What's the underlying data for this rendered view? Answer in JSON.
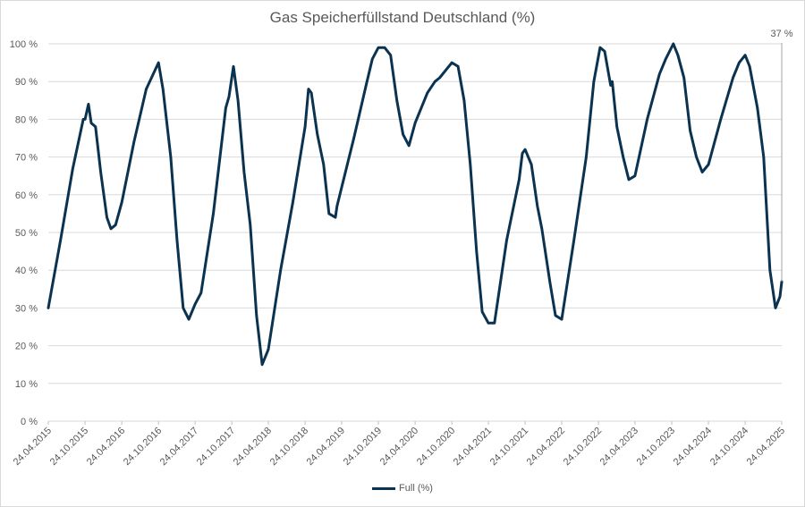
{
  "chart_data": {
    "type": "line",
    "title": "Gas Speicherfüllstand Deutschland (%)",
    "xlabel": "",
    "ylabel": "",
    "ylim": [
      0,
      100
    ],
    "y_ticks": [
      "0 %",
      "10 %",
      "20 %",
      "30 %",
      "40 %",
      "50 %",
      "60 %",
      "70 %",
      "80 %",
      "90 %",
      "100 %"
    ],
    "x_ticks": [
      "24.04.2015",
      "24.10.2015",
      "24.04.2016",
      "24.10.2016",
      "24.04.2017",
      "24.10.2017",
      "24.04.2018",
      "24.10.2018",
      "24.04.2019",
      "24.10.2019",
      "24.04.2020",
      "24.10.2020",
      "24.04.2021",
      "24.10.2021",
      "24.04.2022",
      "24.10.2022",
      "24.04.2023",
      "24.10.2023",
      "24.04.2024",
      "24.10.2024",
      "24.04.2025"
    ],
    "series": [
      {
        "name": "Full (%)",
        "color": "#0b3350",
        "points": [
          [
            "24.04.2015",
            30
          ],
          [
            "24.06.2015",
            48
          ],
          [
            "24.08.2015",
            67
          ],
          [
            "15.10.2015",
            80
          ],
          [
            "24.10.2015",
            80
          ],
          [
            "10.11.2015",
            84
          ],
          [
            "24.11.2015",
            79
          ],
          [
            "15.12.2015",
            78
          ],
          [
            "10.01.2016",
            66
          ],
          [
            "10.02.2016",
            54
          ],
          [
            "01.03.2016",
            51
          ],
          [
            "24.03.2016",
            52
          ],
          [
            "24.04.2016",
            58
          ],
          [
            "24.06.2016",
            74
          ],
          [
            "24.08.2016",
            88
          ],
          [
            "24.10.2016",
            95
          ],
          [
            "15.11.2016",
            88
          ],
          [
            "24.12.2016",
            70
          ],
          [
            "24.01.2017",
            48
          ],
          [
            "24.02.2017",
            30
          ],
          [
            "24.03.2017",
            27
          ],
          [
            "24.04.2017",
            31
          ],
          [
            "24.05.2017",
            34
          ],
          [
            "24.07.2017",
            55
          ],
          [
            "24.09.2017",
            83
          ],
          [
            "10.10.2017",
            86
          ],
          [
            "01.11.2017",
            94
          ],
          [
            "24.11.2017",
            85
          ],
          [
            "24.12.2017",
            66
          ],
          [
            "24.01.2018",
            52
          ],
          [
            "24.02.2018",
            28
          ],
          [
            "24.03.2018",
            15
          ],
          [
            "24.04.2018",
            19
          ],
          [
            "24.06.2018",
            40
          ],
          [
            "24.08.2018",
            58
          ],
          [
            "24.10.2018",
            78
          ],
          [
            "10.11.2018",
            88
          ],
          [
            "24.11.2018",
            87
          ],
          [
            "24.12.2018",
            76
          ],
          [
            "24.01.2019",
            68
          ],
          [
            "20.02.2019",
            55
          ],
          [
            "24.03.2019",
            54
          ],
          [
            "01.04.2019",
            57
          ],
          [
            "24.06.2019",
            75
          ],
          [
            "24.08.2019",
            89
          ],
          [
            "24.09.2019",
            96
          ],
          [
            "24.10.2019",
            99
          ],
          [
            "24.11.2019",
            99
          ],
          [
            "24.12.2019",
            97
          ],
          [
            "24.01.2020",
            85
          ],
          [
            "24.02.2020",
            76
          ],
          [
            "24.03.2020",
            73
          ],
          [
            "24.04.2020",
            79
          ],
          [
            "24.06.2020",
            87
          ],
          [
            "01.08.2020",
            90
          ],
          [
            "24.08.2020",
            91
          ],
          [
            "24.10.2020",
            95
          ],
          [
            "24.11.2020",
            94
          ],
          [
            "24.12.2020",
            85
          ],
          [
            "24.01.2021",
            68
          ],
          [
            "24.02.2021",
            45
          ],
          [
            "24.03.2021",
            29
          ],
          [
            "24.04.2021",
            26
          ],
          [
            "24.05.2021",
            26
          ],
          [
            "24.07.2021",
            48
          ],
          [
            "24.09.2021",
            64
          ],
          [
            "10.10.2021",
            71
          ],
          [
            "24.10.2021",
            72
          ],
          [
            "24.11.2021",
            68
          ],
          [
            "24.12.2021",
            57
          ],
          [
            "15.01.2022",
            51
          ],
          [
            "24.02.2022",
            37
          ],
          [
            "24.03.2022",
            28
          ],
          [
            "24.04.2022",
            27
          ],
          [
            "24.06.2022",
            48
          ],
          [
            "24.08.2022",
            70
          ],
          [
            "01.10.2022",
            90
          ],
          [
            "01.11.2022",
            99
          ],
          [
            "24.11.2022",
            98
          ],
          [
            "24.12.2022",
            89
          ],
          [
            "01.01.2023",
            90
          ],
          [
            "24.01.2023",
            78
          ],
          [
            "24.02.2023",
            70
          ],
          [
            "24.03.2023",
            64
          ],
          [
            "24.04.2023",
            65
          ],
          [
            "24.06.2023",
            80
          ],
          [
            "24.08.2023",
            92
          ],
          [
            "24.09.2023",
            96
          ],
          [
            "01.11.2023",
            100
          ],
          [
            "24.11.2023",
            97
          ],
          [
            "24.12.2023",
            91
          ],
          [
            "24.01.2024",
            77
          ],
          [
            "24.02.2024",
            70
          ],
          [
            "24.03.2024",
            66
          ],
          [
            "24.04.2024",
            68
          ],
          [
            "24.06.2024",
            80
          ],
          [
            "24.08.2024",
            91
          ],
          [
            "24.09.2024",
            95
          ],
          [
            "24.10.2024",
            97
          ],
          [
            "15.11.2024",
            94
          ],
          [
            "24.12.2024",
            83
          ],
          [
            "24.01.2025",
            70
          ],
          [
            "24.02.2025",
            40
          ],
          [
            "24.03.2025",
            30
          ],
          [
            "15.04.2025",
            33
          ],
          [
            "24.04.2025",
            37
          ]
        ]
      }
    ],
    "annotation": {
      "text": "37 %",
      "value": 37
    },
    "grid": true,
    "legend_position": "bottom"
  }
}
